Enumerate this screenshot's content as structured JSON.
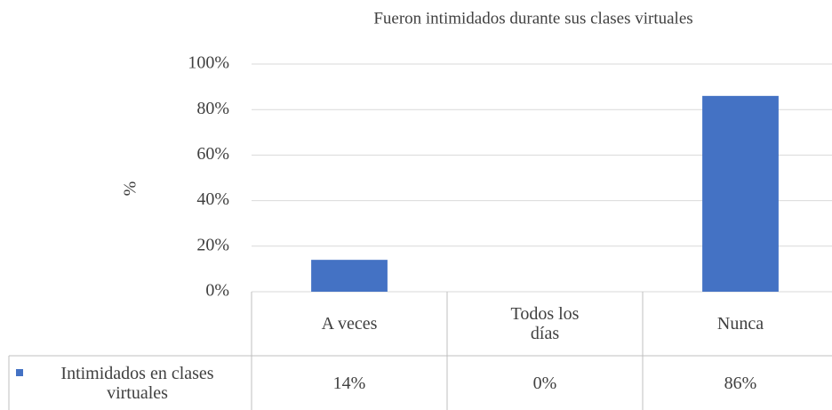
{
  "chart_data": {
    "type": "bar",
    "title": "Fueron intimidados durante sus clases virtuales",
    "y_label": "%",
    "categories": [
      "A veces",
      "Todos los días",
      "Nunca"
    ],
    "series": [
      {
        "name": "Intimidados en clases virtuales",
        "color": "#4472c4",
        "values": [
          14,
          0,
          86
        ],
        "value_labels": [
          "14%",
          "0%",
          "86%"
        ]
      }
    ],
    "ylim": [
      0,
      100
    ],
    "yticks": [
      {
        "value": 0,
        "label": "0%"
      },
      {
        "value": 20,
        "label": "20%"
      },
      {
        "value": 40,
        "label": "40%"
      },
      {
        "value": 60,
        "label": "60%"
      },
      {
        "value": 80,
        "label": "80%"
      },
      {
        "value": 100,
        "label": "100%"
      }
    ],
    "grid": true
  }
}
